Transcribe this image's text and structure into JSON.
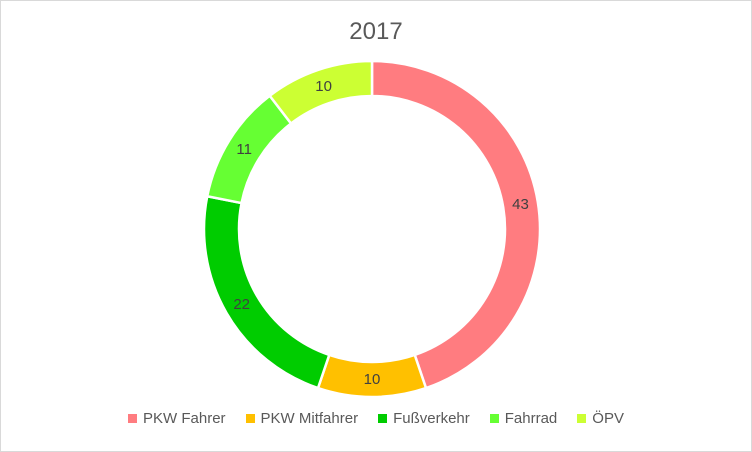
{
  "chart_data": {
    "type": "pie",
    "style": "donut",
    "title": "2017",
    "categories": [
      "PKW Fahrer",
      "PKW Mitfahrer",
      "Fußverkehr",
      "Fahrrad",
      "ÖPV"
    ],
    "values": [
      43,
      10,
      22,
      11,
      10
    ],
    "data_labels": [
      "43",
      "10",
      "22",
      "11",
      "10"
    ],
    "colors": [
      "#FF7C80",
      "#FFC000",
      "#00CC00",
      "#66FF33",
      "#CCFF33"
    ],
    "legend_position": "bottom",
    "start_angle_deg": 0,
    "direction": "clockwise"
  }
}
